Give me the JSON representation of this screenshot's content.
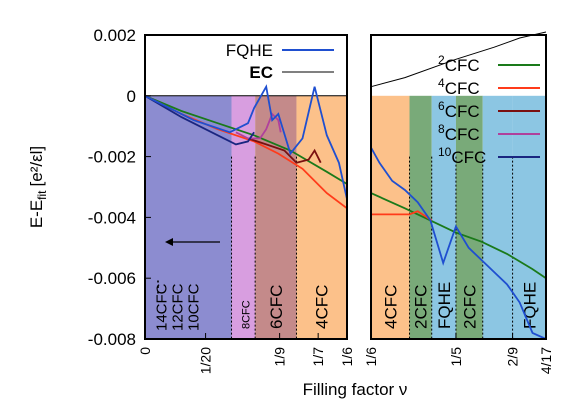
{
  "chart_data": {
    "type": "line",
    "ylabel_main": "E-E",
    "ylabel_sub": "fit",
    "ylabel_unit": "[e²/εl]",
    "xlabel": "Filling factor ν",
    "ylim": [
      -0.008,
      0.002
    ],
    "y_ticks": [
      "0.002",
      "0",
      "-0.002",
      "-0.004",
      "-0.006",
      "-0.008"
    ],
    "y_tick_values": [
      0.002,
      0,
      -0.002,
      -0.004,
      -0.006,
      -0.008
    ],
    "legend_left": [
      {
        "name": "FQHE",
        "color": "#1f4fd0"
      },
      {
        "name": "EC",
        "color": "#000000"
      }
    ],
    "legend_right": [
      {
        "sup": "2",
        "base": "CFC",
        "color": "#1a7a1a"
      },
      {
        "sup": "4",
        "base": "CFC",
        "color": "#ff3b1a"
      },
      {
        "sup": "6",
        "base": "CFC",
        "color": "#7a1010"
      },
      {
        "sup": "8",
        "base": "CFC",
        "color": "#b0409c"
      },
      {
        "sup": "10",
        "base": "CFC",
        "color": "#1a2680"
      }
    ],
    "panel_left": {
      "x_ticks": [
        "0",
        "1/20",
        "1/9",
        "1/7",
        "1/6"
      ],
      "x_tick_values": [
        0,
        0.05,
        0.1111,
        0.1429,
        0.1667
      ],
      "xlim": [
        0,
        0.1667
      ],
      "regions": [
        {
          "from": 0,
          "to": 0.0714,
          "color": "#8c8cd0",
          "label_lines": [
            "14CFC",
            "12CFC",
            "10CFC"
          ]
        },
        {
          "from": 0.0714,
          "to": 0.0909,
          "color": "#d89ee0",
          "label": "8CFC"
        },
        {
          "from": 0.0909,
          "to": 0.125,
          "color": "#c48a8a",
          "label": "6CFC"
        },
        {
          "from": 0.125,
          "to": 0.1667,
          "color": "#fcc18a",
          "label": "4CFC"
        }
      ],
      "ellipsis": "⋮",
      "series": [
        {
          "name": "EC",
          "x": [
            0,
            0.02,
            0.04,
            0.06,
            0.08,
            0.1,
            0.12,
            0.14,
            0.1667
          ],
          "y": [
            0,
            0,
            0,
            0,
            0,
            0,
            0,
            0,
            0
          ]
        },
        {
          "name": "2CFC",
          "x": [
            0,
            0.03,
            0.06,
            0.09,
            0.12,
            0.15,
            0.1667
          ],
          "y": [
            0,
            -0.0005,
            -0.0009,
            -0.0013,
            -0.0018,
            -0.0025,
            -0.0029
          ]
        },
        {
          "name": "4CFC",
          "x": [
            0,
            0.03,
            0.06,
            0.09,
            0.11,
            0.13,
            0.15,
            0.1667
          ],
          "y": [
            0,
            -0.0006,
            -0.0011,
            -0.0015,
            -0.0019,
            -0.0024,
            -0.0032,
            -0.0037
          ]
        },
        {
          "name": "6CFC",
          "x": [
            0.085,
            0.1,
            0.115,
            0.125,
            0.135,
            0.14,
            0.145
          ],
          "y": [
            -0.0014,
            -0.0016,
            -0.0018,
            -0.0022,
            -0.0021,
            -0.0018,
            -0.0022
          ]
        },
        {
          "name": "8CFC",
          "x": [
            0.075,
            0.085,
            0.095,
            0.1,
            0.105,
            0.11,
            0.112
          ],
          "y": [
            -0.0012,
            -0.0014,
            -0.0014,
            -0.0011,
            -0.0006,
            -0.0008,
            -0.0012
          ]
        },
        {
          "name": "10CFC",
          "x": [
            0,
            0.03,
            0.06,
            0.075,
            0.085,
            0.09
          ],
          "y": [
            0,
            -0.0007,
            -0.0013,
            -0.0016,
            -0.0015,
            -0.0012
          ]
        },
        {
          "name": "FQHE",
          "x": [
            0,
            0.04,
            0.07,
            0.085,
            0.09,
            0.1,
            0.105,
            0.11,
            0.12,
            0.13,
            0.14,
            0.15,
            0.16,
            0.1667
          ],
          "y": [
            0,
            -0.0008,
            -0.0012,
            -0.0009,
            -0.0004,
            0.0003,
            -0.0008,
            -0.0006,
            -0.0019,
            -0.0014,
            0.0003,
            -0.0013,
            -0.0022,
            -0.0034
          ]
        }
      ]
    },
    "panel_right": {
      "x_ticks": [
        "1/6",
        "1/5",
        "2/9",
        "4/17"
      ],
      "x_tick_values": [
        0.1667,
        0.2,
        0.2222,
        0.2353
      ],
      "xlim": [
        0.1667,
        0.2353
      ],
      "regions": [
        {
          "from": 0.1667,
          "to": 0.1818,
          "color": "#fcc18a",
          "label": "4CFC"
        },
        {
          "from": 0.1818,
          "to": 0.1905,
          "color": "#79aa79",
          "label": "2CFC"
        },
        {
          "from": 0.1905,
          "to": 0.2,
          "color": "#8cc6e3",
          "label": "FQHE"
        },
        {
          "from": 0.2,
          "to": 0.2105,
          "color": "#79aa79",
          "label": "2CFC"
        },
        {
          "from": 0.2105,
          "to": 0.2222,
          "color": "#8cc6e3",
          "label": ""
        },
        {
          "from": 0.2222,
          "to": 0.2353,
          "color": "#8cc6e3",
          "label": "FQHE"
        }
      ],
      "series": [
        {
          "name": "EC",
          "x": [
            0.1667,
            0.18,
            0.2,
            0.215,
            0.225,
            0.2353
          ],
          "y": [
            0.0003,
            0.0006,
            0.0012,
            0.0016,
            0.0019,
            0.0021
          ]
        },
        {
          "name": "2CFC",
          "x": [
            0.1667,
            0.18,
            0.19,
            0.2,
            0.21,
            0.22,
            0.23,
            0.2353
          ],
          "y": [
            -0.0032,
            -0.0037,
            -0.0041,
            -0.0045,
            -0.0048,
            -0.0052,
            -0.0057,
            -0.006
          ]
        },
        {
          "name": "4CFC",
          "x": [
            0.1667,
            0.175,
            0.1818,
            0.185,
            0.1905
          ],
          "y": [
            -0.0039,
            -0.0039,
            -0.0039,
            -0.0038,
            -0.0041
          ]
        },
        {
          "name": "FQHE",
          "x": [
            0.1667,
            0.17,
            0.175,
            0.18,
            0.185,
            0.19,
            0.195,
            0.2,
            0.205,
            0.21,
            0.215,
            0.22,
            0.225,
            0.23,
            0.2353
          ],
          "y": [
            -0.0017,
            -0.0022,
            -0.0028,
            -0.0031,
            -0.0035,
            -0.0041,
            -0.0055,
            -0.0043,
            -0.005,
            -0.0054,
            -0.0058,
            -0.0062,
            -0.0068,
            -0.0078,
            -0.008
          ]
        }
      ]
    }
  }
}
